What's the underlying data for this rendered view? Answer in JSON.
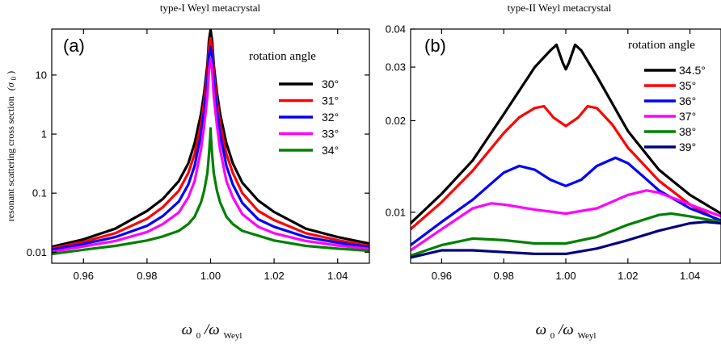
{
  "chart_data": [
    {
      "type": "line",
      "panel_label": "(a)",
      "title": "type-I Weyl metacrystal",
      "ylabel": "resonant scattering cross section",
      "ylabel_symbol": "(σ",
      "ylabel_sub": "0",
      "ylabel_close": ")",
      "xlabel_main": "ω",
      "xlabel_sub1": "0",
      "xlabel_slash": "/ω",
      "xlabel_sub2": "Weyl",
      "yscale": "log",
      "xlim": [
        0.95,
        1.05
      ],
      "ylim": [
        0.0065,
        60
      ],
      "xticks": [
        0.96,
        0.98,
        1.0,
        1.02,
        1.04
      ],
      "xtick_labels": [
        "0.96",
        "0.98",
        "1.00",
        "1.02",
        "1.04"
      ],
      "yticks": [
        0.01,
        0.1,
        1,
        10
      ],
      "ytick_labels": [
        "0.01",
        "0.1",
        "1",
        "10"
      ],
      "legend_title": "rotation angle",
      "legend_position": "right",
      "series": [
        {
          "name": "30°",
          "color": "#000000",
          "x": [
            0.95,
            0.96,
            0.97,
            0.98,
            0.985,
            0.99,
            0.993,
            0.995,
            0.997,
            0.998,
            0.999,
            0.9995,
            1.0,
            1.0005,
            1.001,
            1.002,
            1.003,
            1.005,
            1.007,
            1.01,
            1.015,
            1.02,
            1.03,
            1.04,
            1.05
          ],
          "y": [
            0.0123,
            0.0165,
            0.025,
            0.05,
            0.08,
            0.16,
            0.32,
            0.7,
            2.2,
            5,
            15,
            38,
            58,
            38,
            15,
            5,
            2.2,
            0.7,
            0.32,
            0.15,
            0.075,
            0.048,
            0.025,
            0.018,
            0.014
          ]
        },
        {
          "name": "31°",
          "color": "#ff0000",
          "x": [
            0.95,
            0.96,
            0.97,
            0.98,
            0.985,
            0.99,
            0.993,
            0.995,
            0.997,
            0.998,
            0.999,
            0.9995,
            1.0,
            1.0005,
            1.001,
            1.002,
            1.003,
            1.005,
            1.007,
            1.01,
            1.015,
            1.02,
            1.03,
            1.04,
            1.05
          ],
          "y": [
            0.0116,
            0.015,
            0.021,
            0.037,
            0.058,
            0.11,
            0.22,
            0.46,
            1.5,
            3.6,
            11,
            28,
            42,
            28,
            11,
            3.6,
            1.5,
            0.46,
            0.22,
            0.1,
            0.05,
            0.035,
            0.021,
            0.016,
            0.0128
          ]
        },
        {
          "name": "32°",
          "color": "#0000ff",
          "x": [
            0.95,
            0.96,
            0.97,
            0.98,
            0.985,
            0.99,
            0.993,
            0.995,
            0.997,
            0.998,
            0.999,
            0.9995,
            1.0,
            1.0005,
            1.001,
            1.002,
            1.003,
            1.005,
            1.007,
            1.01,
            1.015,
            1.02,
            1.03,
            1.04,
            1.05
          ],
          "y": [
            0.011,
            0.0138,
            0.018,
            0.028,
            0.041,
            0.072,
            0.14,
            0.29,
            1.0,
            2.5,
            7.5,
            20,
            30,
            20,
            7.5,
            2.5,
            1.0,
            0.29,
            0.14,
            0.068,
            0.036,
            0.027,
            0.018,
            0.0145,
            0.0122
          ]
        },
        {
          "name": "33°",
          "color": "#ff00ff",
          "x": [
            0.95,
            0.96,
            0.97,
            0.98,
            0.985,
            0.99,
            0.993,
            0.995,
            0.997,
            0.998,
            0.999,
            0.9995,
            1.0,
            1.0005,
            1.001,
            1.002,
            1.003,
            1.005,
            1.007,
            1.01,
            1.015,
            1.02,
            1.03,
            1.04,
            1.05
          ],
          "y": [
            0.0102,
            0.0125,
            0.0155,
            0.022,
            0.03,
            0.047,
            0.085,
            0.16,
            0.55,
            1.4,
            4.5,
            12,
            19,
            12,
            4.5,
            1.4,
            0.55,
            0.16,
            0.085,
            0.044,
            0.027,
            0.021,
            0.0155,
            0.013,
            0.0114
          ]
        },
        {
          "name": "34°",
          "color": "#008000",
          "x": [
            0.95,
            0.96,
            0.97,
            0.98,
            0.985,
            0.99,
            0.993,
            0.995,
            0.997,
            0.998,
            0.999,
            0.9995,
            0.9999,
            1.0,
            1.0001,
            1.0005,
            1.001,
            1.002,
            1.003,
            1.005,
            1.007,
            1.01,
            1.02,
            1.03,
            1.04,
            1.05
          ],
          "y": [
            0.0093,
            0.011,
            0.0128,
            0.0158,
            0.0185,
            0.023,
            0.03,
            0.04,
            0.07,
            0.11,
            0.22,
            0.45,
            0.9,
            1.25,
            0.9,
            0.45,
            0.22,
            0.11,
            0.07,
            0.04,
            0.03,
            0.023,
            0.0158,
            0.0128,
            0.0115,
            0.0106
          ]
        }
      ]
    },
    {
      "type": "line",
      "panel_label": "(b)",
      "title": "type-II Weyl metacrystal",
      "xlabel_main": "ω",
      "xlabel_sub1": "0",
      "xlabel_slash": "/ω",
      "xlabel_sub2": "Weyl",
      "yscale": "log",
      "xlim": [
        0.95,
        1.05
      ],
      "ylim": [
        0.0068,
        0.04
      ],
      "xticks": [
        0.96,
        0.98,
        1.0,
        1.02,
        1.04
      ],
      "xtick_labels": [
        "0.96",
        "0.98",
        "1.00",
        "1.02",
        "1.04"
      ],
      "yticks": [
        0.01,
        0.02,
        0.03,
        0.04
      ],
      "ytick_labels": [
        "0.01",
        "0.02",
        "0.03",
        "0.04"
      ],
      "legend_title": "rotation angle",
      "legend_position": "right",
      "series": [
        {
          "name": "34.5°",
          "color": "#000000",
          "x": [
            0.95,
            0.96,
            0.97,
            0.98,
            0.99,
            0.995,
            0.997,
            0.999,
            1.0,
            1.001,
            1.003,
            1.005,
            1.01,
            1.02,
            1.03,
            1.04,
            1.05
          ],
          "y": [
            0.0092,
            0.0115,
            0.0148,
            0.021,
            0.03,
            0.034,
            0.0355,
            0.031,
            0.0295,
            0.031,
            0.0355,
            0.034,
            0.028,
            0.0185,
            0.0138,
            0.0114,
            0.0099
          ]
        },
        {
          "name": "35°",
          "color": "#ff0000",
          "x": [
            0.95,
            0.96,
            0.97,
            0.98,
            0.985,
            0.99,
            0.993,
            0.996,
            1.0,
            1.004,
            1.007,
            1.01,
            1.015,
            1.02,
            1.03,
            1.04,
            1.05
          ],
          "y": [
            0.0088,
            0.0108,
            0.0137,
            0.0182,
            0.0205,
            0.022,
            0.0223,
            0.0205,
            0.0192,
            0.0205,
            0.0223,
            0.022,
            0.0194,
            0.0163,
            0.0127,
            0.0106,
            0.0093
          ]
        },
        {
          "name": "36°",
          "color": "#0000ff",
          "x": [
            0.95,
            0.96,
            0.97,
            0.98,
            0.985,
            0.99,
            0.995,
            1.0,
            1.005,
            1.01,
            1.016,
            1.02,
            1.025,
            1.03,
            1.04,
            1.05
          ],
          "y": [
            0.0078,
            0.0093,
            0.011,
            0.0135,
            0.0142,
            0.0138,
            0.0128,
            0.0122,
            0.0128,
            0.0142,
            0.0151,
            0.0145,
            0.0131,
            0.0118,
            0.0103,
            0.0094
          ]
        },
        {
          "name": "37°",
          "color": "#ff00ff",
          "x": [
            0.95,
            0.96,
            0.97,
            0.976,
            0.98,
            0.99,
            1.0,
            1.01,
            1.02,
            1.026,
            1.03,
            1.04,
            1.05
          ],
          "y": [
            0.0075,
            0.0088,
            0.0103,
            0.0107,
            0.0106,
            0.0102,
            0.0099,
            0.0103,
            0.0114,
            0.0118,
            0.0116,
            0.0106,
            0.0097
          ]
        },
        {
          "name": "38°",
          "color": "#008000",
          "x": [
            0.95,
            0.96,
            0.97,
            0.98,
            0.99,
            1.0,
            1.01,
            1.02,
            1.03,
            1.034,
            1.04,
            1.05
          ],
          "y": [
            0.0072,
            0.0078,
            0.0082,
            0.0081,
            0.0079,
            0.0079,
            0.0083,
            0.0091,
            0.0098,
            0.0099,
            0.0097,
            0.0093
          ]
        },
        {
          "name": "39°",
          "color": "#000080",
          "x": [
            0.95,
            0.955,
            0.96,
            0.97,
            0.98,
            0.99,
            1.0,
            1.01,
            1.02,
            1.03,
            1.04,
            1.045,
            1.05
          ],
          "y": [
            0.0071,
            0.0073,
            0.0075,
            0.0075,
            0.0074,
            0.0073,
            0.0073,
            0.0076,
            0.0081,
            0.0087,
            0.0092,
            0.0093,
            0.0092
          ]
        }
      ]
    }
  ]
}
